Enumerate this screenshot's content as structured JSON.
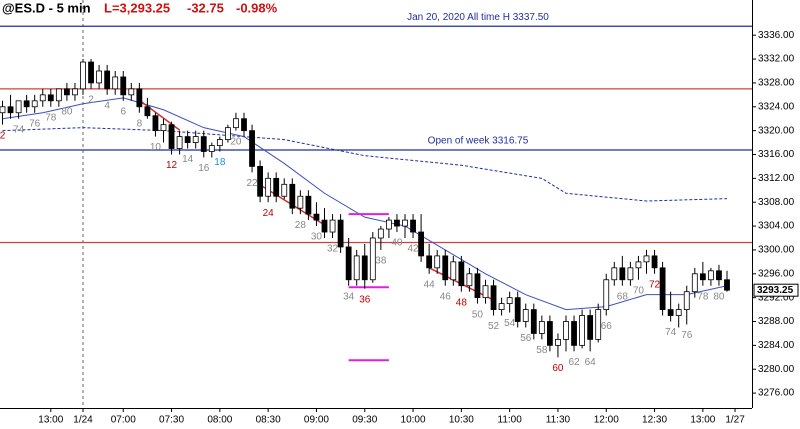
{
  "chart_data": {
    "type": "candlestick",
    "symbol": "@ES.D - 5 min",
    "last": "L=3,293.25",
    "change": "-32.75",
    "change_pct": "-0.98%",
    "categories": [
      null,
      null,
      null,
      null,
      null,
      null,
      "13:00",
      null,
      null,
      null,
      "1/24",
      null,
      null,
      null,
      null,
      "07:00",
      null,
      null,
      null,
      null,
      null,
      "07:30",
      null,
      null,
      null,
      null,
      null,
      "08:00",
      null,
      null,
      null,
      null,
      null,
      "08:30",
      null,
      null,
      null,
      null,
      null,
      "09:00",
      null,
      null,
      null,
      null,
      null,
      "09:30",
      null,
      null,
      null,
      null,
      null,
      "10:00",
      null,
      null,
      null,
      null,
      null,
      "10:30",
      null,
      null,
      null,
      null,
      null,
      "11:00",
      null,
      null,
      null,
      null,
      null,
      "11:30",
      null,
      null,
      null,
      null,
      null,
      "12:00",
      null,
      null,
      null,
      null,
      null,
      "12:30",
      null,
      null,
      null,
      null,
      null,
      "13:00",
      null,
      null,
      null,
      "1/27"
    ],
    "open": [
      3323,
      3324,
      3323,
      3325,
      3324,
      3325,
      3326,
      3325,
      3327,
      3326,
      3327,
      3331.5,
      3328,
      3330,
      3327,
      3329,
      3326,
      3327,
      3324,
      3322.5,
      3320,
      3321,
      3317,
      3319,
      3318,
      3319,
      3316.5,
      3317.5,
      3318.5,
      3320.5,
      3322,
      3320,
      3314,
      3309,
      3312,
      3309,
      3311,
      3307,
      3309,
      3306,
      3305,
      3303,
      3305,
      3300.5,
      3295,
      3299,
      3295,
      3302,
      3303.5,
      3305,
      3304,
      3305,
      3303,
      3299,
      3297,
      3299,
      3295,
      3298,
      3294,
      3296,
      3292,
      3294,
      3290,
      3291,
      3292,
      3288,
      3290,
      3286,
      3288,
      3284,
      3285,
      3288,
      3284,
      3289,
      3285,
      3290,
      3295,
      3297,
      3295,
      3297,
      3298,
      3299,
      3297,
      3290,
      3289,
      3290,
      3293,
      3296,
      3295,
      3296.5,
      3295,
      null
    ],
    "high": [
      3325,
      3326,
      3325,
      3326,
      3326,
      3327,
      3327,
      3327,
      3328,
      3328,
      3332,
      3332,
      3331,
      3331,
      3330,
      3330,
      3328,
      3328,
      3325.5,
      3323,
      3322,
      3321.5,
      3320,
      3320,
      3320,
      3320,
      3318,
      3319,
      3321,
      3323,
      3323,
      3321,
      3315,
      3313,
      3313,
      3312,
      3312,
      3310,
      3310,
      3308,
      3307,
      3306,
      3306,
      3302,
      3300,
      3301,
      3303,
      3304,
      3305.5,
      3306,
      3306,
      3306,
      3306,
      3301,
      3300,
      3300,
      3299,
      3299,
      3297,
      3297,
      3295,
      3295,
      3292,
      3293,
      3293,
      3291,
      3291,
      3289,
      3289,
      3286,
      3289,
      3289,
      3290,
      3290,
      3291,
      3296,
      3298,
      3299,
      3298,
      3299,
      3300,
      3300,
      3298,
      3293,
      3291,
      3294,
      3297,
      3298,
      3297,
      3297.5,
      3296.5,
      null
    ],
    "low": [
      3321,
      3322,
      3322,
      3323,
      3323,
      3324,
      3324,
      3324,
      3325,
      3325,
      3326,
      3327,
      3327,
      3326,
      3326,
      3325,
      3325,
      3323,
      3322,
      3319,
      3318,
      3316,
      3316,
      3317,
      3317,
      3315.5,
      3315.5,
      3316.5,
      3318,
      3320,
      3319,
      3313,
      3308,
      3308,
      3308,
      3308.5,
      3306,
      3306,
      3305,
      3304,
      3302,
      3302,
      3299.5,
      3294,
      3294,
      3293.5,
      3294.5,
      3300,
      3302,
      3303,
      3302,
      3302,
      3298,
      3296,
      3296,
      3294,
      3294,
      3293,
      3293,
      3291,
      3291,
      3289,
      3289,
      3289.5,
      3287,
      3287,
      3285,
      3285,
      3283,
      3282,
      3283,
      3283,
      3283.5,
      3283,
      3284.5,
      3289,
      3294,
      3294,
      3294,
      3295,
      3296,
      3296,
      3289,
      3288,
      3287,
      3287.5,
      3292,
      3294,
      3294,
      3294,
      3293,
      null
    ],
    "close": [
      3324,
      3323,
      3325,
      3324,
      3325,
      3326,
      3325,
      3327,
      3326,
      3327,
      3331.5,
      3328,
      3330,
      3327,
      3329,
      3326,
      3327,
      3324,
      3322.5,
      3320,
      3321,
      3317,
      3319,
      3318,
      3319,
      3316.5,
      3317.5,
      3318.5,
      3320.5,
      3322,
      3320,
      3314,
      3309,
      3312,
      3309,
      3311,
      3307,
      3309,
      3306,
      3305,
      3303,
      3305,
      3300.5,
      3295,
      3299,
      3295,
      3302,
      3303.5,
      3305,
      3304,
      3305,
      3303,
      3299,
      3297,
      3299,
      3295,
      3298,
      3294,
      3296,
      3292,
      3294,
      3290,
      3291,
      3292,
      3288,
      3290,
      3286,
      3288,
      3284,
      3285,
      3288,
      3284,
      3289,
      3285,
      3290,
      3295,
      3297,
      3295,
      3297,
      3298,
      3299,
      3297,
      3290,
      3289,
      3290,
      3293,
      3296,
      3295,
      3296.5,
      3295,
      3293.25,
      null
    ],
    "bar_label_color": "#888888",
    "bar_labels": [
      {
        "text": "2",
        "color": "#c00000"
      },
      null,
      "74",
      null,
      "76",
      null,
      "78",
      null,
      "80",
      null,
      null,
      "2",
      null,
      "4",
      null,
      "6",
      null,
      "8",
      null,
      "10",
      null,
      {
        "text": "12",
        "color": "#c00000"
      },
      null,
      "14",
      null,
      "16",
      null,
      {
        "text": "18",
        "color": "#1e8fd6"
      },
      null,
      "20",
      null,
      "22",
      null,
      {
        "text": "24",
        "color": "#c00000"
      },
      null,
      null,
      null,
      "28",
      null,
      "30",
      null,
      "32",
      null,
      "34",
      null,
      {
        "text": "36",
        "color": "#c00000"
      },
      null,
      "38",
      null,
      "40",
      null,
      "42",
      null,
      "44",
      null,
      "46",
      null,
      {
        "text": "48",
        "color": "#c00000"
      },
      null,
      "50",
      null,
      "52",
      null,
      "54",
      null,
      "56",
      null,
      "58",
      null,
      {
        "text": "60",
        "color": "#c00000"
      },
      null,
      "62",
      null,
      "64",
      null,
      "66",
      null,
      "68",
      null,
      "70",
      null,
      {
        "text": "72",
        "color": "#c00000"
      },
      null,
      "74",
      null,
      "76",
      null,
      "78",
      null,
      "80",
      null,
      null
    ],
    "ema": {
      "color": "#3a4fc4",
      "x": [
        0,
        5,
        10,
        15,
        20,
        25,
        30,
        35,
        40,
        45,
        50,
        55,
        60,
        65,
        70,
        75,
        80,
        85,
        90
      ],
      "values": [
        3322,
        3323,
        3324.5,
        3325.5,
        3323.5,
        3320.5,
        3319,
        3314.5,
        3309.5,
        3305.5,
        3304,
        3300,
        3296,
        3292.5,
        3290,
        3290.5,
        3292.5,
        3292.5,
        3294
      ]
    },
    "vwap": {
      "color": "#1f2ea0",
      "x": [
        0,
        10,
        20,
        30,
        35,
        45,
        57,
        67,
        70,
        80,
        90
      ],
      "values": [
        3320,
        3320.5,
        3320,
        3319,
        3318.5,
        3315.8,
        3314.2,
        3312,
        3309.5,
        3308.2,
        3308.6
      ]
    },
    "levels": [
      {
        "value": 3337.5,
        "color": "#1f2ea0",
        "label": "Jan 20, 2020 All time H 3337.50"
      },
      {
        "value": 3327,
        "color": "#d04040"
      },
      {
        "value": 3316.75,
        "color": "#1f2ea0",
        "label": "Open of week 3316.75"
      },
      {
        "value": 3301.25,
        "color": "#d04040"
      }
    ],
    "targets": {
      "color": "#e020e0",
      "items": [
        {
          "value": 3306,
          "from": 43,
          "to": 48
        },
        {
          "value": 3293.75,
          "from": 43,
          "to": 48
        },
        {
          "value": 3281.5,
          "from": 43,
          "to": 48
        }
      ]
    },
    "trend_lines": {
      "color": "#d03030",
      "items": [
        {
          "from": [
            17,
            3325.1
          ],
          "to": [
            22,
            3320.1
          ]
        },
        {
          "from": [
            32,
            3310.9
          ],
          "to": [
            40,
            3304.2
          ]
        },
        {
          "from": [
            53,
            3297
          ],
          "to": [
            61,
            3291.6
          ]
        }
      ]
    },
    "session_break": 10,
    "last_price": {
      "value": 3293.25,
      "label": "3293.25"
    },
    "ylim": [
      3273.5,
      3341.9
    ],
    "yticks": [
      {
        "value": 3276,
        "label": "3276.00"
      },
      {
        "value": 3280,
        "label": "3280.00"
      },
      {
        "value": 3284,
        "label": "3284.00"
      },
      {
        "value": 3288,
        "label": "3288.00"
      },
      {
        "value": 3292,
        "label": "3292.00"
      },
      {
        "value": 3296,
        "label": "3296.00"
      },
      {
        "value": 3300,
        "label": "3300.00"
      },
      {
        "value": 3304,
        "label": "3304.00"
      },
      {
        "value": 3308,
        "label": "3308.00"
      },
      {
        "value": 3312,
        "label": "3312.00"
      },
      {
        "value": 3316,
        "label": "3316.00"
      },
      {
        "value": 3320,
        "label": "3320.00"
      },
      {
        "value": 3324,
        "label": "3324.00"
      },
      {
        "value": 3328,
        "label": "3328.00"
      },
      {
        "value": 3332,
        "label": "3332.00"
      },
      {
        "value": 3336,
        "label": "3336.00"
      }
    ]
  }
}
